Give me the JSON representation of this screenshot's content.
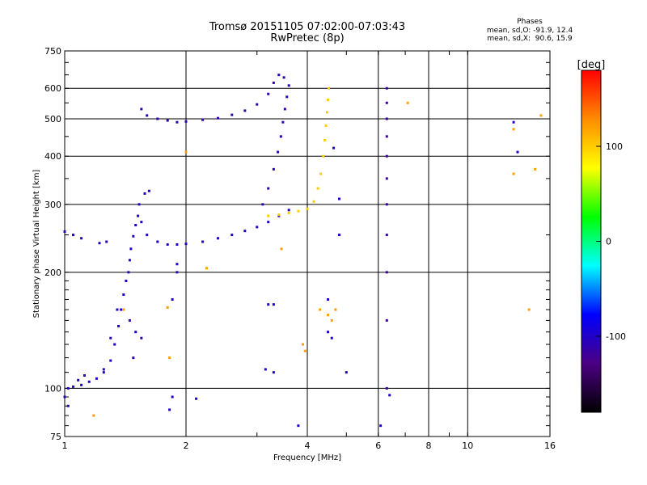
{
  "header": {
    "title_line1": "Tromsø 20151105 07:02:00-07:03:43",
    "title_line2": "RwPretec (8p)",
    "phase_title": "Phases",
    "phase_o": "mean, sd,O: -91.9, 12.4",
    "phase_x": "mean, sd,X:  90.6, 15.9"
  },
  "colorbar": {
    "unit": "[deg]",
    "range": [
      -180,
      180
    ],
    "ticks": [
      "100",
      "0",
      "-100"
    ],
    "tick_values": [
      100,
      0,
      -100
    ],
    "stops": [
      "#000000",
      "#4b0082",
      "#0000ff",
      "#00ffff",
      "#00ff00",
      "#ffff00",
      "#ff8c00",
      "#ff0000"
    ]
  },
  "chart_data": {
    "type": "scatter",
    "title": "Tromsø 20151105 07:02:00-07:03:43",
    "subtitle": "RwPretec (8p)",
    "xlabel": "Frequency [MHz]",
    "ylabel": "Stationary phase Virtual Height [km]",
    "x_scale": "log",
    "y_scale": "log",
    "xlim": [
      1,
      16
    ],
    "ylim": [
      75,
      750
    ],
    "xticks": [
      1,
      2,
      4,
      6,
      8,
      10,
      16
    ],
    "xtick_labels": [
      "1",
      "2",
      "4",
      "6",
      "8",
      "10",
      "16"
    ],
    "yticks": [
      75,
      100,
      200,
      300,
      400,
      500,
      600,
      750
    ],
    "ytick_labels": [
      "75",
      "100",
      "200",
      "300",
      "400",
      "500",
      "600",
      "750"
    ],
    "grid": true,
    "color_scale": "phase_deg",
    "series": [
      {
        "trace": "E-layer and F1 blue trace",
        "phase_deg": -100,
        "points": [
          [
            1.02,
            100
          ],
          [
            1.05,
            101
          ],
          [
            1.1,
            102
          ],
          [
            1.15,
            104
          ],
          [
            1.2,
            106
          ],
          [
            1.25,
            110
          ],
          [
            1.3,
            118
          ],
          [
            1.33,
            130
          ],
          [
            1.36,
            145
          ],
          [
            1.38,
            160
          ],
          [
            1.4,
            175
          ],
          [
            1.42,
            190
          ],
          [
            1.44,
            200
          ],
          [
            1.45,
            215
          ],
          [
            1.46,
            230
          ],
          [
            1.48,
            248
          ],
          [
            1.5,
            265
          ],
          [
            1.52,
            280
          ],
          [
            1.53,
            300
          ],
          [
            1.55,
            270
          ],
          [
            1.6,
            250
          ],
          [
            1.7,
            240
          ],
          [
            1.8,
            236
          ],
          [
            1.9,
            236
          ],
          [
            2.0,
            237
          ],
          [
            2.2,
            240
          ],
          [
            2.4,
            245
          ],
          [
            2.6,
            250
          ],
          [
            2.8,
            256
          ],
          [
            3.0,
            262
          ],
          [
            3.2,
            270
          ],
          [
            3.4,
            280
          ],
          [
            3.6,
            290
          ]
        ]
      },
      {
        "trace": "F2 O-mode blue trace",
        "phase_deg": -110,
        "points": [
          [
            3.1,
            300
          ],
          [
            3.2,
            330
          ],
          [
            3.3,
            370
          ],
          [
            3.38,
            410
          ],
          [
            3.44,
            450
          ],
          [
            3.48,
            490
          ],
          [
            3.52,
            530
          ],
          [
            3.56,
            570
          ],
          [
            3.6,
            610
          ],
          [
            3.5,
            640
          ],
          [
            3.4,
            650
          ],
          [
            3.3,
            620
          ],
          [
            3.2,
            580
          ],
          [
            3.0,
            545
          ],
          [
            2.8,
            525
          ],
          [
            2.6,
            512
          ],
          [
            2.4,
            502
          ],
          [
            2.2,
            497
          ],
          [
            2.0,
            492
          ],
          [
            1.9,
            490
          ],
          [
            1.8,
            495
          ],
          [
            1.7,
            500
          ],
          [
            1.6,
            510
          ],
          [
            1.55,
            530
          ]
        ]
      },
      {
        "trace": "F2 X-mode yellow trace",
        "phase_deg": 100,
        "points": [
          [
            3.2,
            280
          ],
          [
            3.4,
            282
          ],
          [
            3.6,
            285
          ],
          [
            3.8,
            288
          ],
          [
            4.0,
            292
          ],
          [
            4.15,
            305
          ],
          [
            4.25,
            330
          ],
          [
            4.32,
            360
          ],
          [
            4.38,
            400
          ],
          [
            4.42,
            440
          ],
          [
            4.45,
            480
          ],
          [
            4.48,
            520
          ],
          [
            4.5,
            560
          ],
          [
            4.52,
            600
          ]
        ]
      },
      {
        "trace": "vertical interference line",
        "phase_deg": -115,
        "points": [
          [
            6.3,
            100
          ],
          [
            6.3,
            150
          ],
          [
            6.3,
            200
          ],
          [
            6.3,
            250
          ],
          [
            6.3,
            300
          ],
          [
            6.3,
            350
          ],
          [
            6.3,
            400
          ],
          [
            6.3,
            450
          ],
          [
            6.3,
            500
          ],
          [
            6.3,
            550
          ],
          [
            6.3,
            600
          ]
        ]
      },
      {
        "trace": "low-frequency cluster",
        "phase_deg": -105,
        "points": [
          [
            1.0,
            255
          ],
          [
            1.05,
            250
          ],
          [
            1.1,
            245
          ],
          [
            1.22,
            238
          ],
          [
            1.27,
            240
          ],
          [
            1.0,
            95
          ],
          [
            1.02,
            90
          ],
          [
            1.08,
            105
          ],
          [
            1.12,
            108
          ],
          [
            1.25,
            112
          ],
          [
            1.3,
            135
          ],
          [
            1.35,
            160
          ],
          [
            1.45,
            150
          ],
          [
            1.5,
            140
          ],
          [
            1.55,
            135
          ],
          [
            1.48,
            120
          ]
        ]
      },
      {
        "trace": "scattered points",
        "phase_deg": 120,
        "points": [
          [
            1.18,
            85
          ],
          [
            1.4,
            160
          ],
          [
            1.8,
            162
          ],
          [
            1.82,
            120
          ],
          [
            2.0,
            410
          ],
          [
            2.25,
            205
          ],
          [
            3.45,
            230
          ],
          [
            4.3,
            160
          ],
          [
            4.5,
            155
          ],
          [
            4.6,
            150
          ],
          [
            4.7,
            160
          ],
          [
            7.1,
            550
          ],
          [
            13.0,
            360
          ],
          [
            13.0,
            470
          ],
          [
            14.2,
            160
          ],
          [
            14.7,
            370
          ],
          [
            15.2,
            510
          ],
          [
            3.95,
            125
          ],
          [
            3.9,
            130
          ]
        ]
      },
      {
        "trace": "scattered points low phase",
        "phase_deg": -100,
        "points": [
          [
            1.85,
            95
          ],
          [
            1.82,
            88
          ],
          [
            2.12,
            94
          ],
          [
            3.2,
            165
          ],
          [
            3.3,
            165
          ],
          [
            3.15,
            112
          ],
          [
            3.3,
            110
          ],
          [
            3.8,
            80
          ],
          [
            4.5,
            170
          ],
          [
            4.5,
            140
          ],
          [
            4.6,
            135
          ],
          [
            4.65,
            420
          ],
          [
            4.8,
            310
          ],
          [
            4.8,
            250
          ],
          [
            5.0,
            110
          ],
          [
            6.08,
            80
          ],
          [
            6.4,
            96
          ],
          [
            13.0,
            490
          ],
          [
            13.3,
            410
          ],
          [
            1.85,
            170
          ],
          [
            1.9,
            210
          ],
          [
            1.58,
            320
          ],
          [
            1.62,
            325
          ],
          [
            1.9,
            200
          ]
        ]
      }
    ]
  }
}
